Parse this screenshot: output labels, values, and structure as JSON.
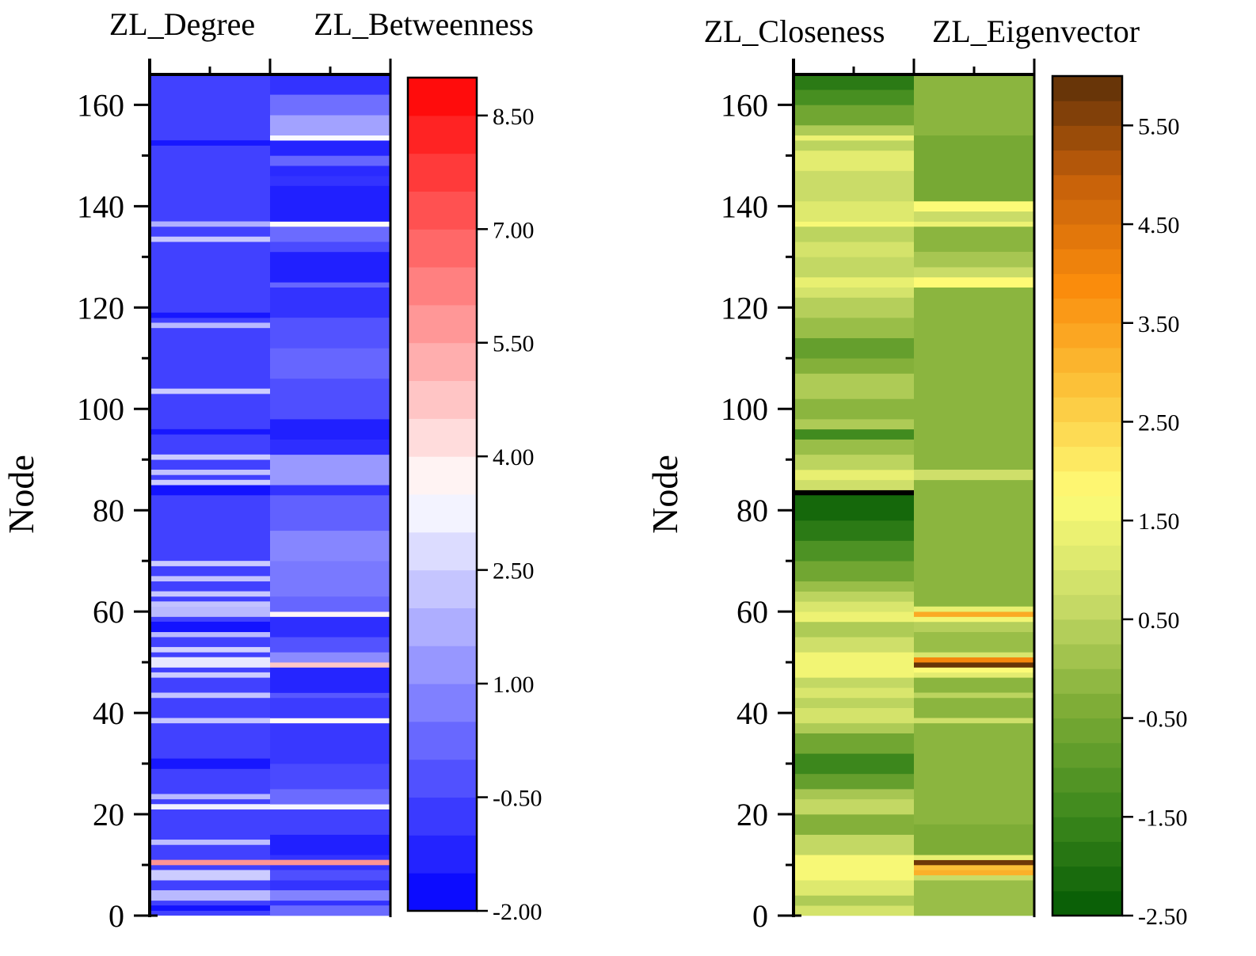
{
  "chart_data": [
    {
      "type": "heatmap",
      "panel": "left",
      "columns": [
        "ZL_Degree",
        "ZL_Betweenness"
      ],
      "ylabel": "Node",
      "y_ticks": [
        "0",
        "20",
        "40",
        "60",
        "80",
        "100",
        "120",
        "140",
        "160"
      ],
      "ylim": [
        0,
        166
      ],
      "colorbar": {
        "ticks": [
          "-2.00",
          "-0.50",
          "1.00",
          "2.50",
          "4.00",
          "5.50",
          "7.00",
          "8.50"
        ],
        "range": [
          -2.0,
          9.0
        ],
        "colors": [
          "#0000ff",
          "#ffffff",
          "#ff0000"
        ],
        "mid": 3.5,
        "levels": 22
      },
      "base": [
        -0.6,
        -0.9
      ],
      "features": [
        {
          "col": 0,
          "start": 1,
          "end": 2,
          "value": -1.6
        },
        {
          "col": 0,
          "start": 3,
          "end": 5,
          "value": 2.0
        },
        {
          "col": 0,
          "start": 7,
          "end": 9,
          "value": 2.4
        },
        {
          "col": 0,
          "start": 10,
          "end": 11,
          "value": 5.8
        },
        {
          "col": 0,
          "start": 14,
          "end": 15,
          "value": 2.1
        },
        {
          "col": 0,
          "start": 21,
          "end": 22,
          "value": 3.2
        },
        {
          "col": 0,
          "start": 23,
          "end": 24,
          "value": 2.0
        },
        {
          "col": 0,
          "start": 29,
          "end": 31,
          "value": -1.5
        },
        {
          "col": 0,
          "start": 38,
          "end": 39,
          "value": 2.3
        },
        {
          "col": 0,
          "start": 43,
          "end": 44,
          "value": 2.2
        },
        {
          "col": 0,
          "start": 47,
          "end": 48,
          "value": 2.4
        },
        {
          "col": 0,
          "start": 49,
          "end": 51,
          "value": 3.0
        },
        {
          "col": 0,
          "start": 52,
          "end": 53,
          "value": 2.5
        },
        {
          "col": 0,
          "start": 55,
          "end": 56,
          "value": 2.0
        },
        {
          "col": 0,
          "start": 56,
          "end": 58,
          "value": -1.6
        },
        {
          "col": 0,
          "start": 59,
          "end": 61,
          "value": 2.0
        },
        {
          "col": 0,
          "start": 61,
          "end": 62,
          "value": 2.2
        },
        {
          "col": 0,
          "start": 63,
          "end": 64,
          "value": 2.3
        },
        {
          "col": 0,
          "start": 66,
          "end": 67,
          "value": 2.2
        },
        {
          "col": 0,
          "start": 69,
          "end": 70,
          "value": 2.4
        },
        {
          "col": 0,
          "start": 83,
          "end": 85,
          "value": -1.6
        },
        {
          "col": 0,
          "start": 85,
          "end": 86,
          "value": 2.4
        },
        {
          "col": 0,
          "start": 87,
          "end": 88,
          "value": 2.2
        },
        {
          "col": 0,
          "start": 90,
          "end": 91,
          "value": 2.4
        },
        {
          "col": 0,
          "start": 95,
          "end": 96,
          "value": -1.5
        },
        {
          "col": 0,
          "start": 103,
          "end": 104,
          "value": 2.4
        },
        {
          "col": 0,
          "start": 116,
          "end": 117,
          "value": 2.0
        },
        {
          "col": 0,
          "start": 118,
          "end": 119,
          "value": -1.5
        },
        {
          "col": 0,
          "start": 133,
          "end": 134,
          "value": 2.3
        },
        {
          "col": 0,
          "start": 136,
          "end": 137,
          "value": 1.8
        },
        {
          "col": 0,
          "start": 152,
          "end": 153,
          "value": -1.5
        },
        {
          "col": 1,
          "start": 0,
          "end": 2,
          "value": 0.3
        },
        {
          "col": 1,
          "start": 3,
          "end": 5,
          "value": 0.8
        },
        {
          "col": 1,
          "start": 7,
          "end": 9,
          "value": -0.3
        },
        {
          "col": 1,
          "start": 10,
          "end": 11,
          "value": 5.8
        },
        {
          "col": 1,
          "start": 12,
          "end": 16,
          "value": -1.3
        },
        {
          "col": 1,
          "start": 16,
          "end": 21,
          "value": -0.6
        },
        {
          "col": 1,
          "start": 21,
          "end": 22,
          "value": 3.3
        },
        {
          "col": 1,
          "start": 22,
          "end": 25,
          "value": 0.3
        },
        {
          "col": 1,
          "start": 25,
          "end": 30,
          "value": -0.4
        },
        {
          "col": 1,
          "start": 30,
          "end": 38,
          "value": -0.8
        },
        {
          "col": 1,
          "start": 38,
          "end": 39,
          "value": 3.6
        },
        {
          "col": 1,
          "start": 39,
          "end": 43,
          "value": -0.7
        },
        {
          "col": 1,
          "start": 43,
          "end": 44,
          "value": -0.1
        },
        {
          "col": 1,
          "start": 44,
          "end": 49,
          "value": -1.2
        },
        {
          "col": 1,
          "start": 49,
          "end": 50,
          "value": 4.7
        },
        {
          "col": 1,
          "start": 50,
          "end": 52,
          "value": 1.0
        },
        {
          "col": 1,
          "start": 52,
          "end": 55,
          "value": -0.2
        },
        {
          "col": 1,
          "start": 55,
          "end": 59,
          "value": -1.0
        },
        {
          "col": 1,
          "start": 59,
          "end": 60,
          "value": 3.7
        },
        {
          "col": 1,
          "start": 60,
          "end": 63,
          "value": 0.2
        },
        {
          "col": 1,
          "start": 63,
          "end": 70,
          "value": 0.6
        },
        {
          "col": 1,
          "start": 70,
          "end": 76,
          "value": 0.9
        },
        {
          "col": 1,
          "start": 76,
          "end": 83,
          "value": 0.1
        },
        {
          "col": 1,
          "start": 83,
          "end": 85,
          "value": -0.9
        },
        {
          "col": 1,
          "start": 85,
          "end": 91,
          "value": 1.3
        },
        {
          "col": 1,
          "start": 91,
          "end": 94,
          "value": -1.0
        },
        {
          "col": 1,
          "start": 94,
          "end": 98,
          "value": -1.3
        },
        {
          "col": 1,
          "start": 98,
          "end": 106,
          "value": -0.3
        },
        {
          "col": 1,
          "start": 106,
          "end": 112,
          "value": 0.2
        },
        {
          "col": 1,
          "start": 112,
          "end": 118,
          "value": -0.2
        },
        {
          "col": 1,
          "start": 124,
          "end": 125,
          "value": 0.2
        },
        {
          "col": 1,
          "start": 125,
          "end": 131,
          "value": -1.3
        },
        {
          "col": 1,
          "start": 131,
          "end": 133,
          "value": -0.4
        },
        {
          "col": 1,
          "start": 133,
          "end": 136,
          "value": 0.3
        },
        {
          "col": 1,
          "start": 136,
          "end": 137,
          "value": 3.6
        },
        {
          "col": 1,
          "start": 137,
          "end": 144,
          "value": -1.3
        },
        {
          "col": 1,
          "start": 146,
          "end": 148,
          "value": -1.1
        },
        {
          "col": 1,
          "start": 148,
          "end": 150,
          "value": 0.2
        },
        {
          "col": 1,
          "start": 150,
          "end": 153,
          "value": -1.2
        },
        {
          "col": 1,
          "start": 153,
          "end": 154,
          "value": 3.4
        },
        {
          "col": 1,
          "start": 154,
          "end": 158,
          "value": 1.5
        },
        {
          "col": 1,
          "start": 158,
          "end": 162,
          "value": 0.4
        }
      ]
    },
    {
      "type": "heatmap",
      "panel": "right",
      "columns": [
        "ZL_Closeness",
        "ZL_Eigenvector"
      ],
      "ylabel": "Node",
      "y_ticks": [
        "0",
        "20",
        "40",
        "60",
        "80",
        "100",
        "120",
        "140",
        "160"
      ],
      "ylim": [
        0,
        166
      ],
      "colorbar": {
        "ticks": [
          "-2.50",
          "-1.50",
          "-0.50",
          "0.50",
          "1.50",
          "2.50",
          "3.50",
          "4.50",
          "5.50"
        ],
        "range": [
          -2.5,
          6.0
        ],
        "colors": [
          "#045a04",
          "#3f8a1e",
          "#7fad37",
          "#c9dc68",
          "#fefd78",
          "#fcc43b",
          "#fa8c0c",
          "#c6600a",
          "#5b2f08"
        ],
        "levels": 34
      },
      "base": [
        -0.4,
        -0.2
      ],
      "features": [
        {
          "col": 0,
          "start": 0,
          "end": 2,
          "value": 0.9
        },
        {
          "col": 0,
          "start": 2,
          "end": 4,
          "value": 0.3
        },
        {
          "col": 0,
          "start": 4,
          "end": 7,
          "value": 1.1
        },
        {
          "col": 0,
          "start": 7,
          "end": 12,
          "value": 1.6
        },
        {
          "col": 0,
          "start": 12,
          "end": 16,
          "value": 0.6
        },
        {
          "col": 0,
          "start": 16,
          "end": 20,
          "value": -0.3
        },
        {
          "col": 0,
          "start": 20,
          "end": 23,
          "value": 0.6
        },
        {
          "col": 0,
          "start": 23,
          "end": 25,
          "value": 0.2
        },
        {
          "col": 0,
          "start": 25,
          "end": 28,
          "value": -0.8
        },
        {
          "col": 0,
          "start": 28,
          "end": 32,
          "value": -1.5
        },
        {
          "col": 0,
          "start": 32,
          "end": 36,
          "value": -0.6
        },
        {
          "col": 0,
          "start": 36,
          "end": 38,
          "value": 0.3
        },
        {
          "col": 0,
          "start": 38,
          "end": 41,
          "value": 0.9
        },
        {
          "col": 0,
          "start": 41,
          "end": 43,
          "value": 0.5
        },
        {
          "col": 0,
          "start": 43,
          "end": 45,
          "value": 1.0
        },
        {
          "col": 0,
          "start": 45,
          "end": 47,
          "value": 0.6
        },
        {
          "col": 0,
          "start": 47,
          "end": 52,
          "value": 1.5
        },
        {
          "col": 0,
          "start": 52,
          "end": 55,
          "value": 0.8
        },
        {
          "col": 0,
          "start": 55,
          "end": 58,
          "value": 0.3
        },
        {
          "col": 0,
          "start": 58,
          "end": 60,
          "value": 1.4
        },
        {
          "col": 0,
          "start": 60,
          "end": 62,
          "value": 1.0
        },
        {
          "col": 0,
          "start": 62,
          "end": 64,
          "value": 0.5
        },
        {
          "col": 0,
          "start": 64,
          "end": 66,
          "value": 0.0
        },
        {
          "col": 0,
          "start": 66,
          "end": 70,
          "value": -0.6
        },
        {
          "col": 0,
          "start": 70,
          "end": 74,
          "value": -1.2
        },
        {
          "col": 0,
          "start": 74,
          "end": 78,
          "value": -1.8
        },
        {
          "col": 0,
          "start": 78,
          "end": 83,
          "value": -2.2
        },
        {
          "col": 0,
          "start": 83,
          "end": 84,
          "value": -4.0
        },
        {
          "col": 0,
          "start": 84,
          "end": 86,
          "value": 0.8
        },
        {
          "col": 0,
          "start": 86,
          "end": 88,
          "value": 1.3
        },
        {
          "col": 0,
          "start": 88,
          "end": 91,
          "value": 0.5
        },
        {
          "col": 0,
          "start": 91,
          "end": 94,
          "value": 0.0
        },
        {
          "col": 0,
          "start": 94,
          "end": 96,
          "value": -1.4
        },
        {
          "col": 0,
          "start": 96,
          "end": 98,
          "value": 0.3
        },
        {
          "col": 0,
          "start": 98,
          "end": 102,
          "value": -0.2
        },
        {
          "col": 0,
          "start": 102,
          "end": 107,
          "value": 0.3
        },
        {
          "col": 0,
          "start": 107,
          "end": 110,
          "value": -0.3
        },
        {
          "col": 0,
          "start": 110,
          "end": 114,
          "value": -0.8
        },
        {
          "col": 0,
          "start": 114,
          "end": 118,
          "value": 0.0
        },
        {
          "col": 0,
          "start": 118,
          "end": 122,
          "value": 0.4
        },
        {
          "col": 0,
          "start": 122,
          "end": 124,
          "value": 0.9
        },
        {
          "col": 0,
          "start": 124,
          "end": 126,
          "value": 1.3
        },
        {
          "col": 0,
          "start": 126,
          "end": 130,
          "value": 0.6
        },
        {
          "col": 0,
          "start": 130,
          "end": 133,
          "value": 0.9
        },
        {
          "col": 0,
          "start": 133,
          "end": 136,
          "value": 0.5
        },
        {
          "col": 0,
          "start": 136,
          "end": 137,
          "value": 1.6
        },
        {
          "col": 0,
          "start": 137,
          "end": 141,
          "value": 1.1
        },
        {
          "col": 0,
          "start": 141,
          "end": 147,
          "value": 0.7
        },
        {
          "col": 0,
          "start": 147,
          "end": 151,
          "value": 1.2
        },
        {
          "col": 0,
          "start": 151,
          "end": 153,
          "value": 0.5
        },
        {
          "col": 0,
          "start": 153,
          "end": 154,
          "value": 1.4
        },
        {
          "col": 0,
          "start": 154,
          "end": 156,
          "value": 0.3
        },
        {
          "col": 0,
          "start": 156,
          "end": 160,
          "value": -0.6
        },
        {
          "col": 0,
          "start": 160,
          "end": 163,
          "value": -1.3
        },
        {
          "col": 0,
          "start": 163,
          "end": 166,
          "value": -1.8
        },
        {
          "col": 1,
          "start": 0,
          "end": 7,
          "value": 0.0
        },
        {
          "col": 1,
          "start": 7,
          "end": 8,
          "value": 0.7
        },
        {
          "col": 1,
          "start": 8,
          "end": 9,
          "value": 3.2
        },
        {
          "col": 1,
          "start": 9,
          "end": 10,
          "value": 2.9
        },
        {
          "col": 1,
          "start": 10,
          "end": 11,
          "value": 5.8
        },
        {
          "col": 1,
          "start": 11,
          "end": 12,
          "value": 1.3
        },
        {
          "col": 1,
          "start": 12,
          "end": 18,
          "value": -0.4
        },
        {
          "col": 1,
          "start": 38,
          "end": 39,
          "value": 0.8
        },
        {
          "col": 1,
          "start": 43,
          "end": 44,
          "value": 0.5
        },
        {
          "col": 1,
          "start": 47,
          "end": 48,
          "value": 1.2
        },
        {
          "col": 1,
          "start": 48,
          "end": 49,
          "value": 1.7
        },
        {
          "col": 1,
          "start": 49,
          "end": 50,
          "value": 5.9
        },
        {
          "col": 1,
          "start": 50,
          "end": 51,
          "value": 4.0
        },
        {
          "col": 1,
          "start": 51,
          "end": 52,
          "value": 1.0
        },
        {
          "col": 1,
          "start": 52,
          "end": 56,
          "value": 0.0
        },
        {
          "col": 1,
          "start": 56,
          "end": 58,
          "value": 0.4
        },
        {
          "col": 1,
          "start": 58,
          "end": 59,
          "value": 1.5
        },
        {
          "col": 1,
          "start": 59,
          "end": 60,
          "value": 3.3
        },
        {
          "col": 1,
          "start": 60,
          "end": 61,
          "value": 1.3
        },
        {
          "col": 1,
          "start": 86,
          "end": 88,
          "value": 0.8
        },
        {
          "col": 1,
          "start": 124,
          "end": 126,
          "value": 1.8
        },
        {
          "col": 1,
          "start": 126,
          "end": 128,
          "value": 0.7
        },
        {
          "col": 1,
          "start": 128,
          "end": 131,
          "value": 0.2
        },
        {
          "col": 1,
          "start": 136,
          "end": 137,
          "value": 1.4
        },
        {
          "col": 1,
          "start": 137,
          "end": 139,
          "value": 0.7
        },
        {
          "col": 1,
          "start": 139,
          "end": 141,
          "value": 1.7
        },
        {
          "col": 1,
          "start": 141,
          "end": 154,
          "value": -0.5
        },
        {
          "col": 1,
          "start": 154,
          "end": 155,
          "value": -0.2
        }
      ]
    }
  ]
}
